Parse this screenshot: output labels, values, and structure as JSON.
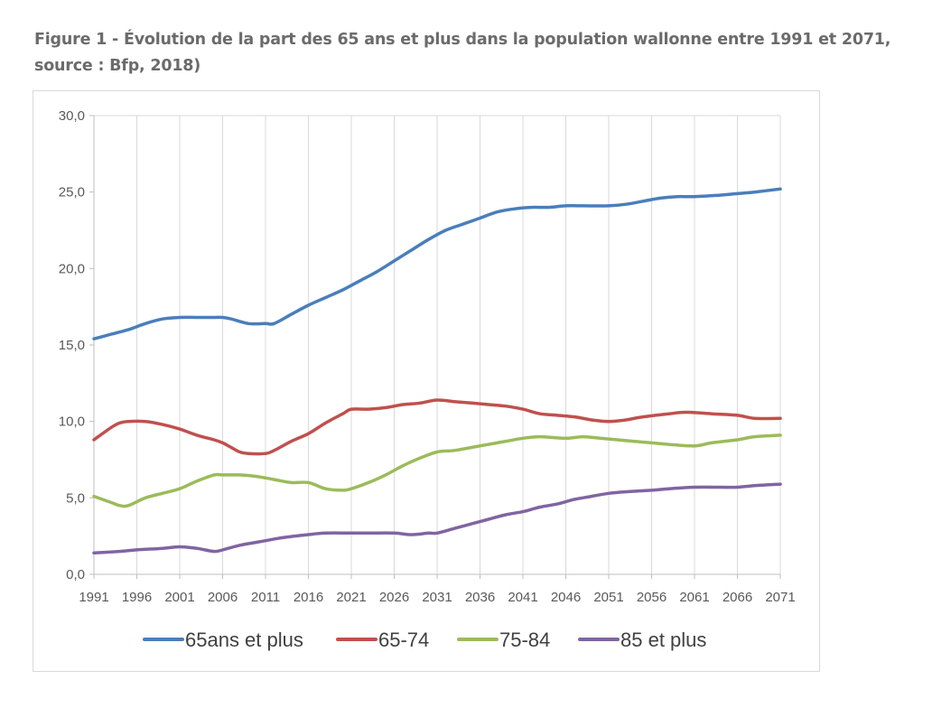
{
  "title": "Figure 1 - Évolution de la part des 65 ans et plus dans la population wallonne entre 1991 et 2071, source : Bfp, 2018)",
  "chart_data": {
    "type": "line",
    "title": "Figure 1 - Évolution de la part des 65 ans et plus dans la population wallonne entre 1991 et 2071, source : Bfp, 2018)",
    "xlabel": "",
    "ylabel": "",
    "xlim": [
      1991,
      2071
    ],
    "ylim": [
      0,
      30
    ],
    "grid": "vertical",
    "legend_position": "bottom",
    "x": [
      1991,
      1996,
      2001,
      2006,
      2011,
      2016,
      2021,
      2026,
      2031,
      2036,
      2041,
      2046,
      2051,
      2056,
      2061,
      2066,
      2071
    ],
    "x_tick_labels": [
      "1991",
      "1996",
      "2001",
      "2006",
      "2011",
      "2016",
      "2021",
      "2026",
      "2031",
      "2036",
      "2041",
      "2046",
      "2051",
      "2056",
      "2061",
      "2066",
      "2071"
    ],
    "y_ticks": [
      0,
      5,
      10,
      15,
      20,
      25,
      30
    ],
    "y_tick_labels": [
      "0,0",
      "5,0",
      "10,0",
      "15,0",
      "20,0",
      "25,0",
      "30,0"
    ],
    "series": [
      {
        "name": "65ans et plus",
        "color": "#4a7ebb",
        "points": [
          [
            1991,
            15.4
          ],
          [
            1993,
            15.7
          ],
          [
            1995,
            16.0
          ],
          [
            1997,
            16.4
          ],
          [
            1999,
            16.7
          ],
          [
            2001,
            16.8
          ],
          [
            2003,
            16.8
          ],
          [
            2005,
            16.8
          ],
          [
            2006,
            16.8
          ],
          [
            2007,
            16.7
          ],
          [
            2009,
            16.4
          ],
          [
            2011,
            16.4
          ],
          [
            2012,
            16.4
          ],
          [
            2014,
            17.0
          ],
          [
            2016,
            17.6
          ],
          [
            2018,
            18.1
          ],
          [
            2020,
            18.6
          ],
          [
            2022,
            19.2
          ],
          [
            2024,
            19.8
          ],
          [
            2026,
            20.5
          ],
          [
            2028,
            21.2
          ],
          [
            2030,
            21.9
          ],
          [
            2032,
            22.5
          ],
          [
            2034,
            22.9
          ],
          [
            2036,
            23.3
          ],
          [
            2038,
            23.7
          ],
          [
            2040,
            23.9
          ],
          [
            2042,
            24.0
          ],
          [
            2044,
            24.0
          ],
          [
            2046,
            24.1
          ],
          [
            2048,
            24.1
          ],
          [
            2051,
            24.1
          ],
          [
            2053,
            24.2
          ],
          [
            2055,
            24.4
          ],
          [
            2057,
            24.6
          ],
          [
            2059,
            24.7
          ],
          [
            2061,
            24.7
          ],
          [
            2064,
            24.8
          ],
          [
            2066,
            24.9
          ],
          [
            2068,
            25.0
          ],
          [
            2071,
            25.2
          ]
        ]
      },
      {
        "name": "65-74",
        "color": "#c0504d",
        "points": [
          [
            1991,
            8.8
          ],
          [
            1993,
            9.6
          ],
          [
            1994,
            9.9
          ],
          [
            1995,
            10.0
          ],
          [
            1997,
            10.0
          ],
          [
            1999,
            9.8
          ],
          [
            2001,
            9.5
          ],
          [
            2003,
            9.1
          ],
          [
            2005,
            8.8
          ],
          [
            2006,
            8.6
          ],
          [
            2007,
            8.3
          ],
          [
            2008,
            8.0
          ],
          [
            2009,
            7.9
          ],
          [
            2011,
            7.9
          ],
          [
            2012,
            8.1
          ],
          [
            2014,
            8.7
          ],
          [
            2016,
            9.2
          ],
          [
            2018,
            9.9
          ],
          [
            2020,
            10.5
          ],
          [
            2021,
            10.8
          ],
          [
            2023,
            10.8
          ],
          [
            2025,
            10.9
          ],
          [
            2027,
            11.1
          ],
          [
            2029,
            11.2
          ],
          [
            2031,
            11.4
          ],
          [
            2033,
            11.3
          ],
          [
            2035,
            11.2
          ],
          [
            2037,
            11.1
          ],
          [
            2039,
            11.0
          ],
          [
            2041,
            10.8
          ],
          [
            2043,
            10.5
          ],
          [
            2045,
            10.4
          ],
          [
            2047,
            10.3
          ],
          [
            2049,
            10.1
          ],
          [
            2051,
            10.0
          ],
          [
            2053,
            10.1
          ],
          [
            2055,
            10.3
          ],
          [
            2058,
            10.5
          ],
          [
            2060,
            10.6
          ],
          [
            2063,
            10.5
          ],
          [
            2066,
            10.4
          ],
          [
            2068,
            10.2
          ],
          [
            2071,
            10.2
          ]
        ]
      },
      {
        "name": "75-84",
        "color": "#9bbb59",
        "points": [
          [
            1991,
            5.1
          ],
          [
            1993,
            4.7
          ],
          [
            1994,
            4.5
          ],
          [
            1995,
            4.5
          ],
          [
            1997,
            5.0
          ],
          [
            1999,
            5.3
          ],
          [
            2001,
            5.6
          ],
          [
            2003,
            6.1
          ],
          [
            2005,
            6.5
          ],
          [
            2006,
            6.5
          ],
          [
            2008,
            6.5
          ],
          [
            2010,
            6.4
          ],
          [
            2012,
            6.2
          ],
          [
            2014,
            6.0
          ],
          [
            2016,
            6.0
          ],
          [
            2018,
            5.6
          ],
          [
            2020,
            5.5
          ],
          [
            2021,
            5.6
          ],
          [
            2023,
            6.0
          ],
          [
            2025,
            6.5
          ],
          [
            2027,
            7.1
          ],
          [
            2029,
            7.6
          ],
          [
            2031,
            8.0
          ],
          [
            2033,
            8.1
          ],
          [
            2035,
            8.3
          ],
          [
            2037,
            8.5
          ],
          [
            2039,
            8.7
          ],
          [
            2041,
            8.9
          ],
          [
            2043,
            9.0
          ],
          [
            2046,
            8.9
          ],
          [
            2048,
            9.0
          ],
          [
            2050,
            8.9
          ],
          [
            2052,
            8.8
          ],
          [
            2054,
            8.7
          ],
          [
            2056,
            8.6
          ],
          [
            2058,
            8.5
          ],
          [
            2061,
            8.4
          ],
          [
            2063,
            8.6
          ],
          [
            2066,
            8.8
          ],
          [
            2068,
            9.0
          ],
          [
            2071,
            9.1
          ]
        ]
      },
      {
        "name": "85 et plus",
        "color": "#8064a2",
        "points": [
          [
            1991,
            1.4
          ],
          [
            1994,
            1.5
          ],
          [
            1996,
            1.6
          ],
          [
            1999,
            1.7
          ],
          [
            2001,
            1.8
          ],
          [
            2003,
            1.7
          ],
          [
            2005,
            1.5
          ],
          [
            2006,
            1.6
          ],
          [
            2008,
            1.9
          ],
          [
            2010,
            2.1
          ],
          [
            2011,
            2.2
          ],
          [
            2013,
            2.4
          ],
          [
            2016,
            2.6
          ],
          [
            2018,
            2.7
          ],
          [
            2021,
            2.7
          ],
          [
            2023,
            2.7
          ],
          [
            2026,
            2.7
          ],
          [
            2028,
            2.6
          ],
          [
            2030,
            2.7
          ],
          [
            2031,
            2.7
          ],
          [
            2033,
            3.0
          ],
          [
            2035,
            3.3
          ],
          [
            2037,
            3.6
          ],
          [
            2039,
            3.9
          ],
          [
            2041,
            4.1
          ],
          [
            2043,
            4.4
          ],
          [
            2045,
            4.6
          ],
          [
            2047,
            4.9
          ],
          [
            2049,
            5.1
          ],
          [
            2051,
            5.3
          ],
          [
            2053,
            5.4
          ],
          [
            2056,
            5.5
          ],
          [
            2058,
            5.6
          ],
          [
            2061,
            5.7
          ],
          [
            2064,
            5.7
          ],
          [
            2066,
            5.7
          ],
          [
            2068,
            5.8
          ],
          [
            2071,
            5.9
          ]
        ]
      }
    ]
  }
}
